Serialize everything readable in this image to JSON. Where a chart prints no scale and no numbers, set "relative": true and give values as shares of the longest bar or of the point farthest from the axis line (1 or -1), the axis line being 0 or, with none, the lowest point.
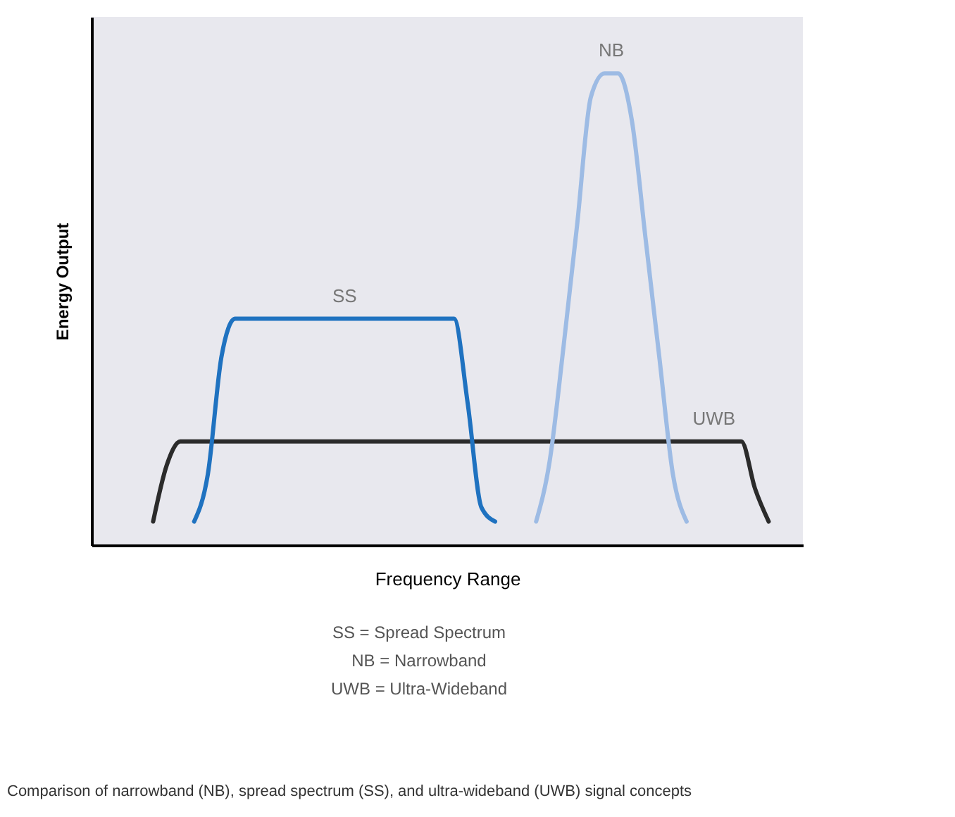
{
  "chart_data": {
    "type": "line",
    "relative": true,
    "xlabel": "Frequency Range",
    "ylabel": "Energy Output",
    "tick_labels": false,
    "marker": "none",
    "line_style": "solid",
    "categories": [
      null,
      null,
      null,
      null,
      null,
      null,
      null,
      null,
      null,
      null,
      null,
      null,
      null,
      null,
      null,
      null,
      null,
      null,
      null,
      null,
      null,
      null,
      null,
      null,
      null,
      null,
      null,
      null,
      null,
      null,
      null,
      null,
      null,
      null,
      null,
      null,
      null,
      null,
      null,
      null,
      null,
      null,
      null,
      null,
      null,
      null,
      null,
      null,
      null,
      null,
      null,
      null
    ],
    "series": [
      {
        "name": "UWB",
        "color": "#2b2b2b",
        "values": [
          null,
          null,
          null,
          null,
          0.05,
          0.17,
          0.22,
          0.22,
          0.22,
          0.22,
          0.22,
          0.22,
          0.22,
          0.22,
          0.22,
          0.22,
          0.22,
          0.22,
          0.22,
          0.22,
          0.22,
          0.22,
          0.22,
          0.22,
          0.22,
          0.22,
          0.22,
          0.22,
          0.22,
          0.22,
          0.22,
          0.22,
          0.22,
          0.22,
          0.22,
          0.22,
          0.22,
          0.22,
          0.22,
          0.22,
          0.22,
          0.22,
          0.22,
          0.22,
          0.22,
          0.22,
          0.22,
          0.22,
          0.12,
          0.05,
          null,
          null
        ]
      },
      {
        "name": "SS",
        "color": "#1f72c0",
        "values": [
          null,
          null,
          null,
          null,
          null,
          null,
          null,
          0.05,
          0.15,
          0.4,
          0.48,
          0.48,
          0.48,
          0.48,
          0.48,
          0.48,
          0.48,
          0.48,
          0.48,
          0.48,
          0.48,
          0.48,
          0.48,
          0.48,
          0.48,
          0.48,
          0.48,
          0.3,
          0.08,
          0.05,
          null,
          null,
          null,
          null,
          null,
          null,
          null,
          null,
          null,
          null,
          null,
          null,
          null,
          null,
          null,
          null,
          null,
          null,
          null,
          null,
          null,
          null
        ]
      },
      {
        "name": "NB",
        "color": "#9dbbe4",
        "values": [
          null,
          null,
          null,
          null,
          null,
          null,
          null,
          null,
          null,
          null,
          null,
          null,
          null,
          null,
          null,
          null,
          null,
          null,
          null,
          null,
          null,
          null,
          null,
          null,
          null,
          null,
          null,
          null,
          null,
          null,
          null,
          null,
          0.05,
          0.18,
          0.42,
          0.68,
          0.95,
          1,
          1,
          0.9,
          0.65,
          0.4,
          0.15,
          0.05,
          null,
          null,
          null,
          null,
          null,
          null,
          null,
          null
        ]
      }
    ],
    "annotations": [
      "SS = Spread Spectrum",
      "NB = Narrowband",
      "UWB = Ultra-Wideband",
      "Comparison of narrowband (NB), spread spectrum (SS), and ultra-wideband (UWB) signal concepts"
    ]
  }
}
